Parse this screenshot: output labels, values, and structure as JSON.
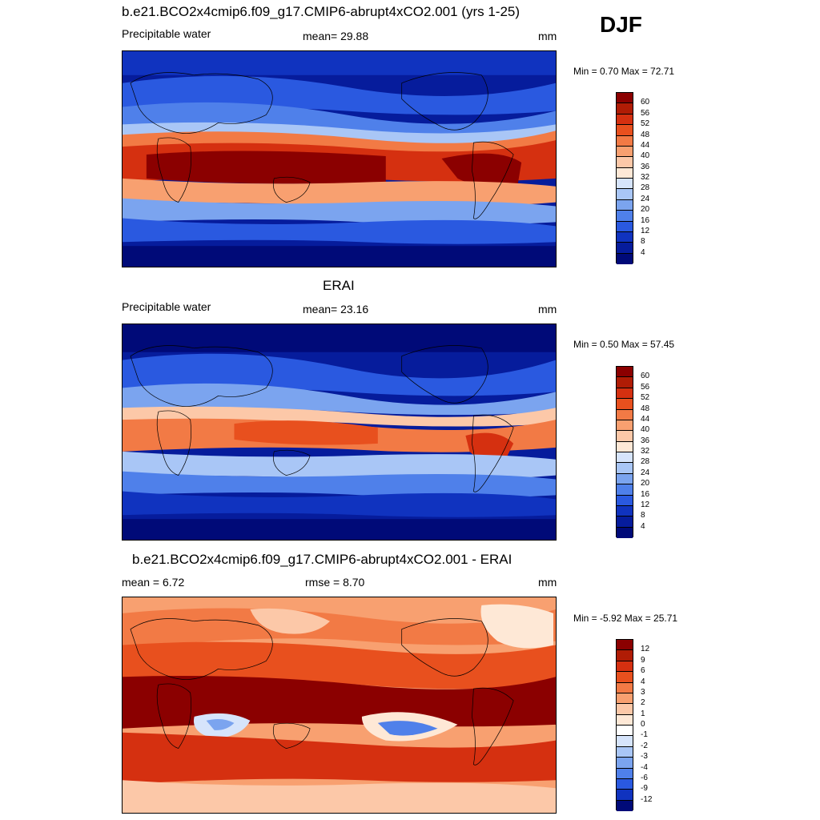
{
  "season": "DJF",
  "panels": [
    {
      "title": "b.e21.BCO2x4cmip6.f09_g17.CMIP6-abrupt4xCO2.001 (yrs 1-25)",
      "left_label": "Precipitable water",
      "center_label": "mean=  29.88",
      "right_label": "mm",
      "minmax": "Min =   0.70 Max =  72.71",
      "colorbar_labels": [
        "60",
        "56",
        "52",
        "48",
        "44",
        "40",
        "36",
        "32",
        "28",
        "24",
        "20",
        "16",
        "12",
        "8",
        "4"
      ],
      "colorbar_colors": [
        "#8b0000",
        "#b01c05",
        "#d53010",
        "#e8501e",
        "#f27a45",
        "#f8a070",
        "#fcc8a8",
        "#fee8d6",
        "#d6e4fb",
        "#a9c6f6",
        "#7ba4ef",
        "#4f80ea",
        "#2a59e0",
        "#1033bf",
        "#061c9c",
        "#000a78"
      ]
    },
    {
      "title": "ERAI",
      "left_label": "Precipitable water",
      "center_label": "mean=  23.16",
      "right_label": "mm",
      "minmax": "Min =   0.50 Max =  57.45",
      "colorbar_labels": [
        "60",
        "56",
        "52",
        "48",
        "44",
        "40",
        "36",
        "32",
        "28",
        "24",
        "20",
        "16",
        "12",
        "8",
        "4"
      ],
      "colorbar_colors": [
        "#8b0000",
        "#b01c05",
        "#d53010",
        "#e8501e",
        "#f27a45",
        "#f8a070",
        "#fcc8a8",
        "#fee8d6",
        "#d6e4fb",
        "#a9c6f6",
        "#7ba4ef",
        "#4f80ea",
        "#2a59e0",
        "#1033bf",
        "#061c9c",
        "#000a78"
      ]
    },
    {
      "title": "b.e21.BCO2x4cmip6.f09_g17.CMIP6-abrupt4xCO2.001 - ERAI",
      "left_label": "mean =   6.72",
      "center_label": "rmse =   8.70",
      "right_label": "mm",
      "minmax": "Min =  -5.92 Max =  25.71",
      "colorbar_labels": [
        "12",
        "9",
        "6",
        "4",
        "3",
        "2",
        "1",
        "0",
        "-1",
        "-2",
        "-3",
        "-4",
        "-6",
        "-9",
        "-12"
      ],
      "colorbar_colors": [
        "#8b0000",
        "#b01c05",
        "#d53010",
        "#e8501e",
        "#f27a45",
        "#f8a070",
        "#fcc8a8",
        "#fee8d6",
        "#ffffff",
        "#d6e4fb",
        "#a9c6f6",
        "#7ba4ef",
        "#4f80ea",
        "#2a59e0",
        "#1033bf",
        "#000a78"
      ]
    }
  ]
}
